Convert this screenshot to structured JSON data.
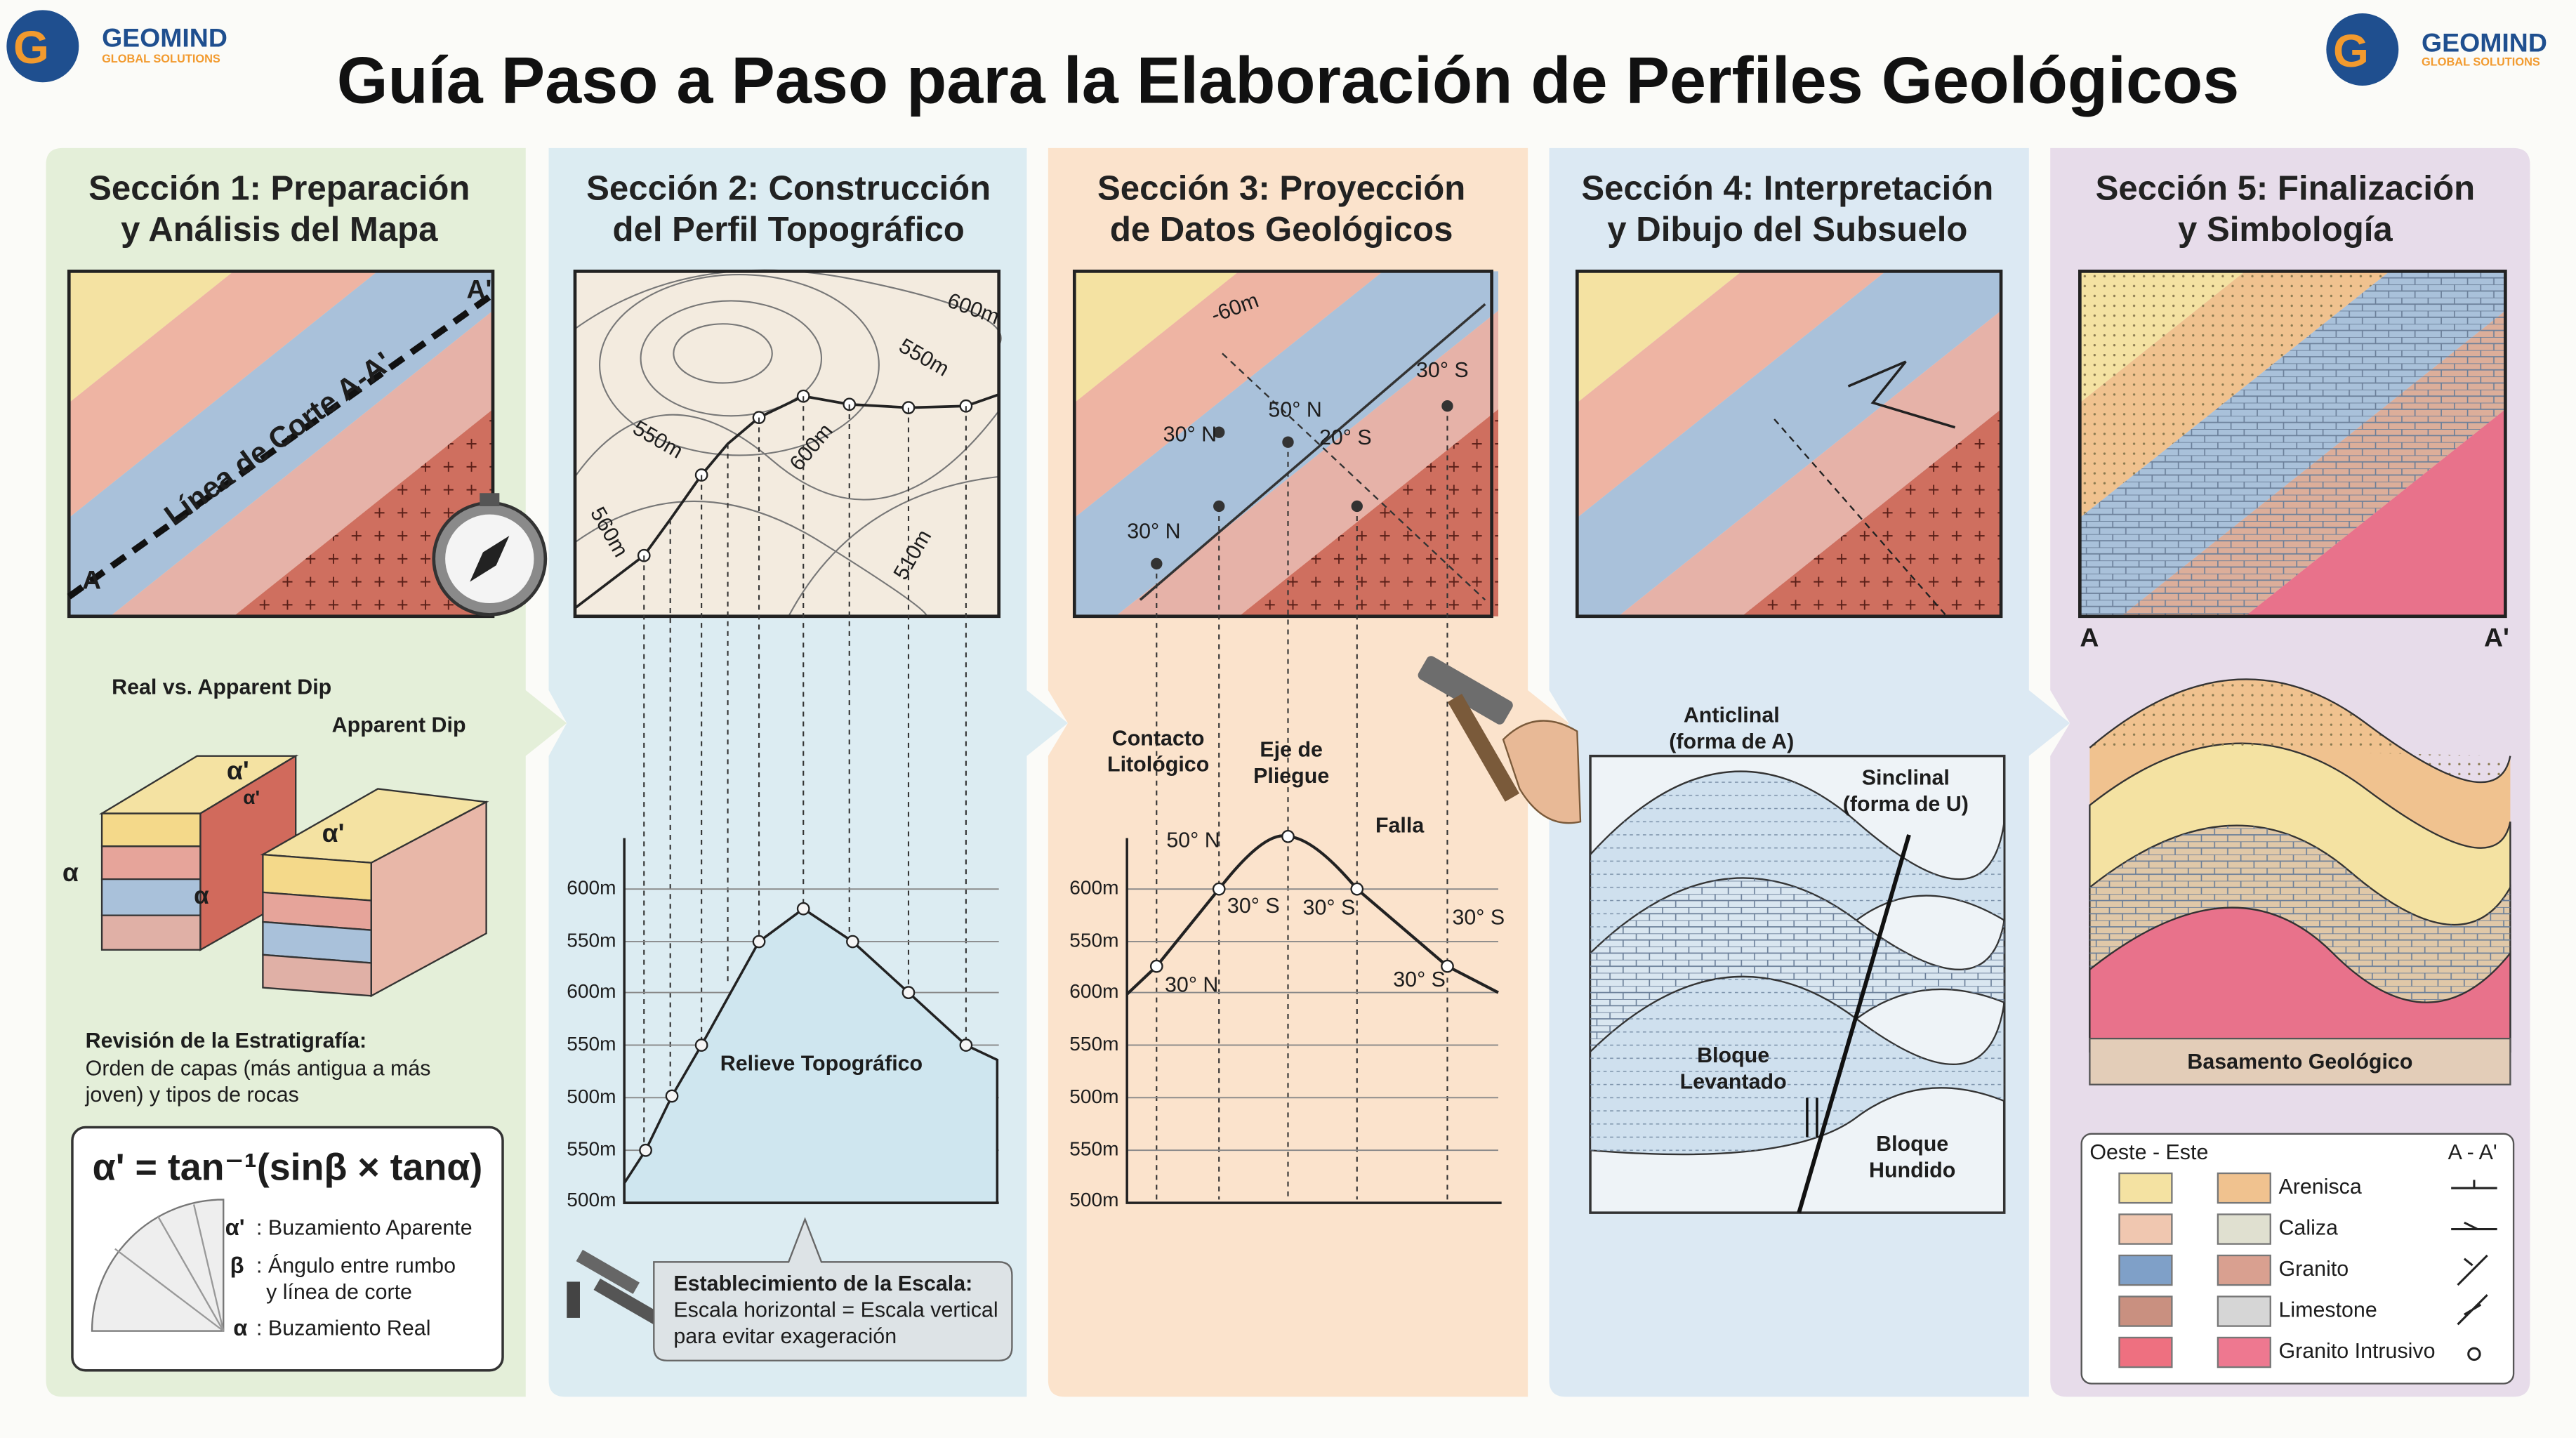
{
  "header": {
    "brand_left": {
      "name": "GEOMIND",
      "tagline": "GLOBAL SOLUTIONS"
    },
    "brand_right": {
      "name": "GEOMIND",
      "tagline": "GLOBAL SOLUTIONS"
    },
    "title": "Guía Paso a Paso para la Elaboración de Perfiles Geológicos"
  },
  "sections": [
    {
      "title_lines": [
        "Sección 1: Preparación",
        "y Análisis del Mapa"
      ],
      "map_labels": [
        "A",
        "A'",
        "Línea de Corte A-A'"
      ],
      "dip_labels": [
        "Real vs. Apparent Dip",
        "Apparent Dip",
        "α'",
        "α'",
        "α",
        "α",
        "α'"
      ],
      "stratigraphy": {
        "heading": "Revisión de la Estratigrafía:",
        "text_lines": [
          "Orden de capas (más antigua a más",
          "joven) y tipos de rocas"
        ]
      },
      "formula": "α' = tan⁻¹(sinβ × tanα)",
      "symbols": [
        {
          "symbol": "α'",
          "meaning_lines": [
            ": Buzamiento Aparente"
          ]
        },
        {
          "symbol": "β",
          "meaning_lines": [
            ": Ángulo entre rumbo",
            "y línea de corte"
          ]
        },
        {
          "symbol": "α",
          "meaning_lines": [
            ": Buzamiento Real"
          ]
        }
      ]
    },
    {
      "title_lines": [
        "Sección 2: Construcción",
        "del Perfil Topográfico"
      ],
      "contour_labels": [
        "600m",
        "550m",
        "550m",
        "600m",
        "560m",
        "510m"
      ],
      "profile_axis": [
        "600m",
        "550m",
        "600m",
        "550m",
        "500m",
        "550m",
        "500m"
      ],
      "profile_label": "Relieve Topográfico",
      "scale_note": {
        "heading": "Establecimiento de la Escala:",
        "text_lines": [
          "Escala horizontal = Escala vertical",
          "para evitar exageración"
        ]
      }
    },
    {
      "title_lines": [
        "Sección 3: Proyección",
        "de Datos Geológicos"
      ],
      "map_labels": [
        "-60m",
        "30° N",
        "50° N",
        "20° S",
        "30° S",
        "30° N"
      ],
      "callouts": [
        {
          "lines": [
            "Contacto",
            "Litológico"
          ]
        },
        {
          "lines": [
            "Eje de",
            "Pliegue"
          ]
        },
        {
          "lines": [
            "Falla"
          ]
        }
      ],
      "profile_labels": [
        "50° N",
        "30° S",
        "30° S",
        "30° N",
        "30° S",
        "30° S"
      ],
      "profile_axis": [
        "600m",
        "550m",
        "600m",
        "550m",
        "500m",
        "550m",
        "500m"
      ]
    },
    {
      "title_lines": [
        "Sección 4: Interpretación",
        "y Dibujo del Subsuelo"
      ],
      "labels": [
        {
          "lines": [
            "Anticlinal",
            "(forma de A)"
          ]
        },
        {
          "lines": [
            "Sinclinal",
            "(forma de U)"
          ]
        },
        {
          "lines": [
            "Bloque",
            "Levantado"
          ]
        },
        {
          "lines": [
            "Bloque",
            "Hundido"
          ]
        }
      ]
    },
    {
      "title_lines": [
        "Sección 5: Finalización",
        "y Simbología"
      ],
      "ends": [
        "A",
        "A'"
      ],
      "banner": "Basamento Geológico",
      "legend": {
        "heading_left": "Oeste - Este",
        "heading_right": "A - A'",
        "items": [
          "Arenisca",
          "Caliza",
          "Granito",
          "Limestone",
          "Granito Intrusivo"
        ]
      }
    }
  ]
}
